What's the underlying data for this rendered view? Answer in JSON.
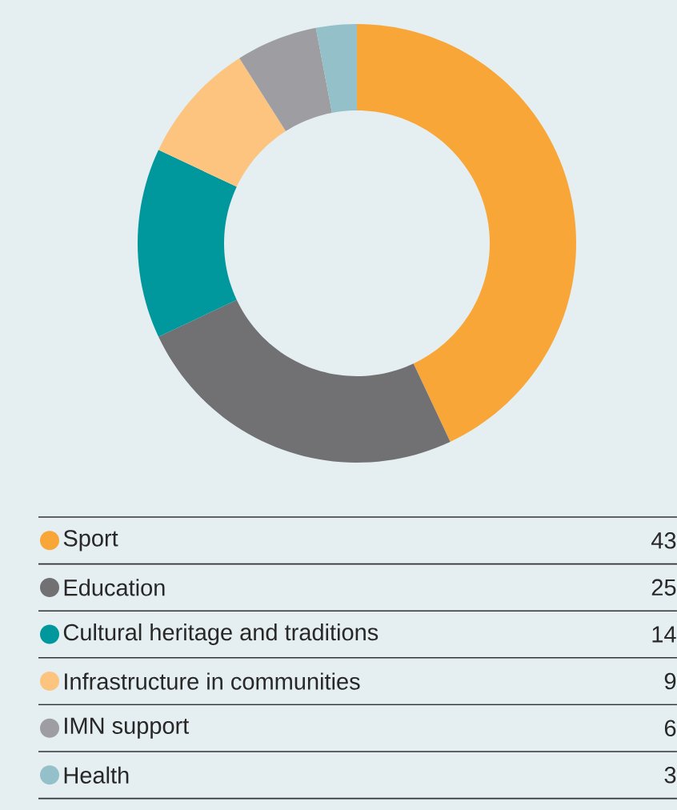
{
  "chart_data": {
    "type": "donut",
    "categories": [
      "Sport",
      "Education",
      "Cultural heritage and traditions",
      "Infrastructure in communities",
      "IMN support",
      "Health"
    ],
    "values": [
      43,
      25,
      14,
      9,
      6,
      3
    ],
    "colors": [
      "#f8a637",
      "#717073",
      "#00979d",
      "#fdc47f",
      "#9e9da2",
      "#94c1c9"
    ],
    "data_labels": true,
    "legend": "bottom"
  }
}
